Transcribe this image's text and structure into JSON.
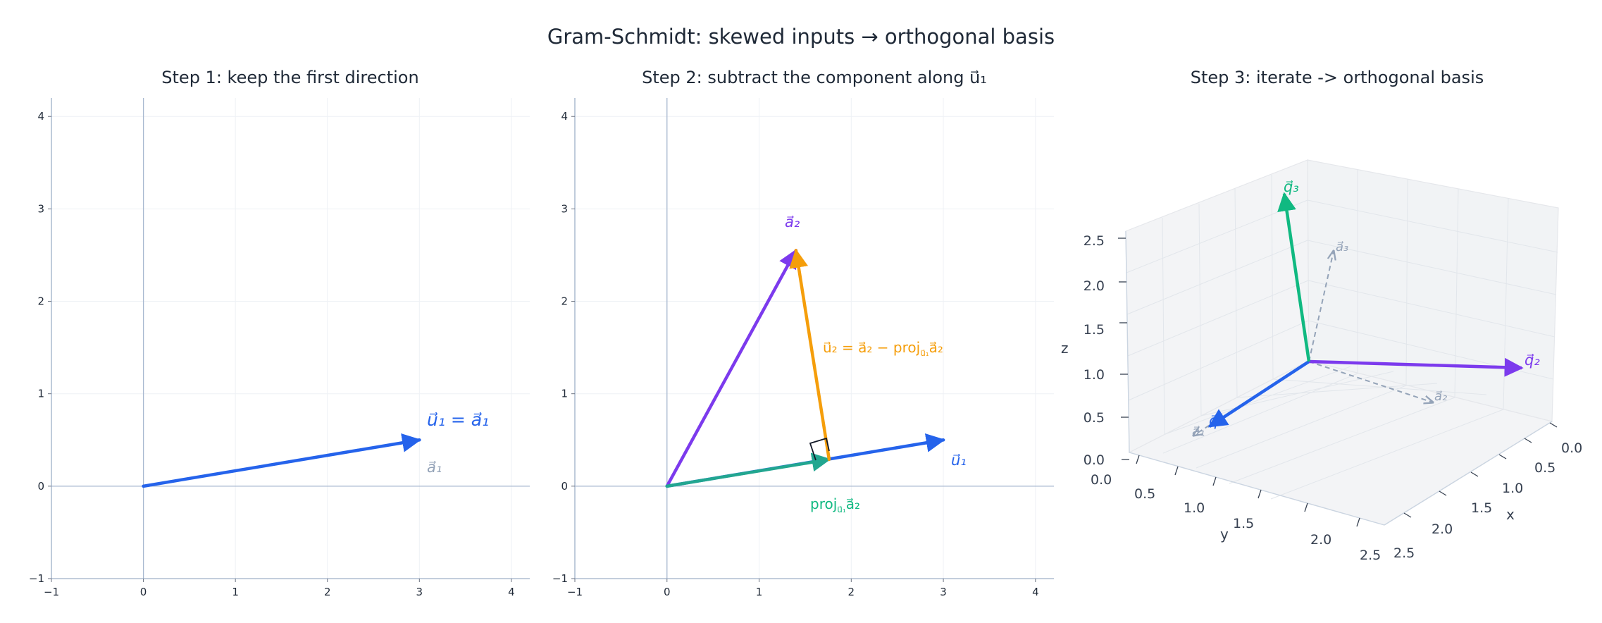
{
  "figure": {
    "suptitle": "Gram-Schmidt:  skewed inputs → orthogonal basis"
  },
  "colors": {
    "blue": "#2563eb",
    "purple": "#7c3aed",
    "orange": "#f59e0b",
    "green": "#10b981",
    "teal": "#22a690",
    "gray": "#94a3b8",
    "axis": "#9fb0c8"
  },
  "chart_data": [
    {
      "type": "vector-plot",
      "title": "Step 1:  keep the first direction",
      "xlim": [
        -1,
        4.2
      ],
      "ylim": [
        -1,
        4.2
      ],
      "xticks": [
        -1,
        0,
        1,
        2,
        3,
        4
      ],
      "yticks": [
        -1,
        0,
        1,
        2,
        3,
        4
      ],
      "grid": true,
      "vectors": [
        {
          "name": "u1",
          "from": [
            0,
            0
          ],
          "to": [
            3,
            0.5
          ],
          "color": "blue"
        }
      ],
      "labels": [
        {
          "text": "u⃗₁ = a⃗₁",
          "color": "blue"
        },
        {
          "text": "a⃗₁",
          "color": "gray"
        }
      ]
    },
    {
      "type": "vector-plot",
      "title": "Step 2:  subtract the component along u⃗₁",
      "xlim": [
        -1,
        4.2
      ],
      "ylim": [
        -1,
        4.2
      ],
      "xticks": [
        -1,
        0,
        1,
        2,
        3,
        4
      ],
      "yticks": [
        -1,
        0,
        1,
        2,
        3,
        4
      ],
      "grid": true,
      "vectors": [
        {
          "name": "a2",
          "from": [
            0,
            0
          ],
          "to": [
            1.4,
            2.55
          ],
          "color": "purple"
        },
        {
          "name": "u1",
          "from": [
            0,
            0
          ],
          "to": [
            3,
            0.5
          ],
          "color": "blue"
        },
        {
          "name": "proj",
          "from": [
            0,
            0
          ],
          "to": [
            1.76,
            0.29
          ],
          "color": "teal"
        },
        {
          "name": "u2",
          "from": [
            1.76,
            0.29
          ],
          "to": [
            1.4,
            2.55
          ],
          "color": "orange"
        }
      ],
      "labels": [
        {
          "text": "a⃗₂",
          "color": "purple"
        },
        {
          "text": "u⃗₂ = a⃗₂ − proj",
          "sub": "u⃗₁",
          "tail": "a⃗₂",
          "color": "orange"
        },
        {
          "text": "u⃗₁",
          "color": "blue"
        },
        {
          "text": "proj",
          "sub": "u⃗₁",
          "tail": "a⃗₂",
          "color": "green"
        }
      ]
    },
    {
      "type": "vector-plot-3d",
      "title": "Step 3:  iterate -> orthogonal basis",
      "xlabel": "x",
      "ylabel": "y",
      "zlabel": "z",
      "xticks": [
        "0.0",
        "0.5",
        "1.0",
        "1.5",
        "2.0",
        "2.5"
      ],
      "yticks": [
        "0.0",
        "0.5",
        "1.0",
        "1.5",
        "2.0",
        "2.5"
      ],
      "zticks": [
        "0.0",
        "0.5",
        "1.0",
        "1.5",
        "2.0",
        "2.5"
      ],
      "vectors": [
        {
          "name": "q1",
          "color": "blue",
          "label": "q⃗₁"
        },
        {
          "name": "q2",
          "color": "purple",
          "label": "q⃗₂"
        },
        {
          "name": "q3",
          "color": "green",
          "label": "q⃗₃"
        },
        {
          "name": "a1",
          "color": "gray",
          "dashed": true,
          "label": "a⃗₁"
        },
        {
          "name": "a2",
          "color": "gray",
          "dashed": true,
          "label": "a⃗₂"
        },
        {
          "name": "a3",
          "color": "gray",
          "dashed": true,
          "label": "a⃗₃"
        }
      ]
    }
  ]
}
